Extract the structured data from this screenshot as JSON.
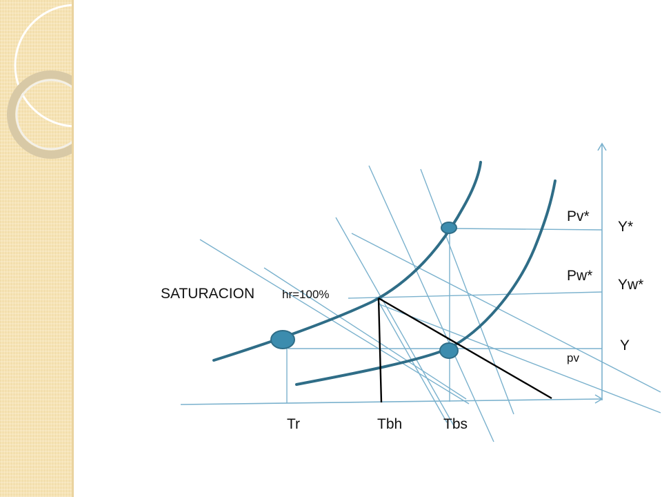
{
  "labels": {
    "pv_star": "Pv*",
    "y_star": "Y*",
    "pw_star": "Pw*",
    "yw_star": "Yw*",
    "saturacion": "SATURACION",
    "hr": "hr=100%",
    "y": "Y",
    "pv": "pv",
    "tr": "Tr",
    "tbh": "Tbh",
    "tbs": "Tbs"
  },
  "colors": {
    "thin_lines": "#7ab1cd",
    "curves": "#2f6d87",
    "points": "#3c8cae",
    "construction_lines": "#000000",
    "side_band": "#f6e3b4"
  }
}
